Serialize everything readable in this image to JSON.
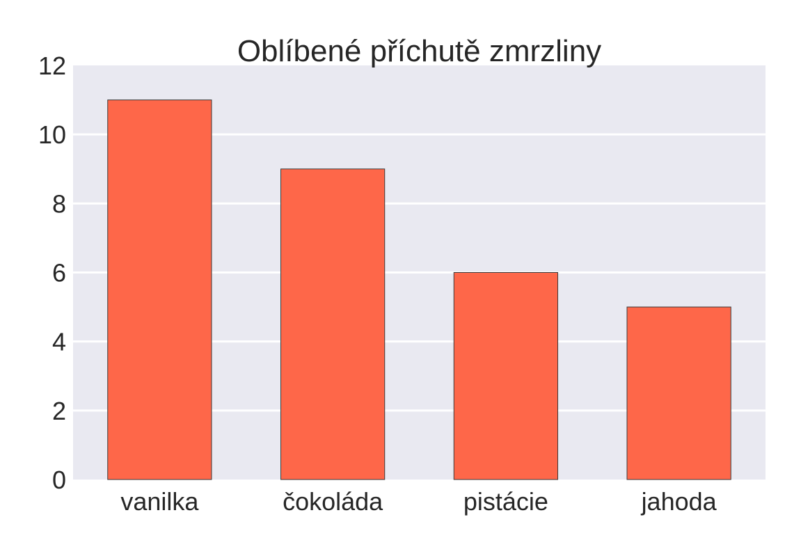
{
  "chart_data": {
    "type": "bar",
    "title": "Oblíbené příchutě zmrzliny",
    "xlabel": "",
    "ylabel": "",
    "categories": [
      "vanilka",
      "čokoláda",
      "pistácie",
      "jahoda"
    ],
    "values": [
      11,
      9,
      6,
      5
    ],
    "ylim": [
      0,
      12
    ],
    "yticks": [
      0,
      2,
      4,
      6,
      8,
      10,
      12
    ],
    "grid": true,
    "colors": {
      "bar": "#fe6749",
      "bar_edge": "#3a3a3a",
      "plot_background": "#e9e9f1",
      "gridline": "#ffffff",
      "text": "#262626"
    }
  }
}
